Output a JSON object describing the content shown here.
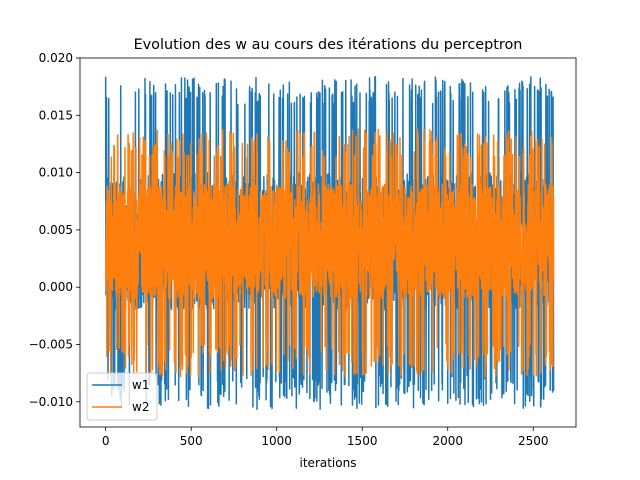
{
  "chart_data": {
    "type": "line",
    "title": "Evolution des w au cours des itérations du perceptron",
    "xlabel": "iterations",
    "ylabel": "",
    "xlim": [
      -150,
      2750
    ],
    "ylim": [
      -0.0122,
      0.02
    ],
    "x_ticks": [
      0,
      500,
      1000,
      1500,
      2000,
      2500
    ],
    "x_tick_labels": [
      "0",
      "500",
      "1000",
      "1500",
      "2000",
      "2500"
    ],
    "y_ticks": [
      -0.01,
      -0.005,
      0.0,
      0.005,
      0.01,
      0.015,
      0.02
    ],
    "y_tick_labels": [
      "−0.010",
      "−0.005",
      "0.000",
      "0.005",
      "0.010",
      "0.015",
      "0.020"
    ],
    "grid": false,
    "legend_position": "lower left",
    "n_points": 2620,
    "series": [
      {
        "name": "w1",
        "color": "#1f77b4",
        "min": -0.0107,
        "max": 0.0184,
        "center": 0.004,
        "spread": 0.006
      },
      {
        "name": "w2",
        "color": "#ff7f0e",
        "min": -0.0079,
        "max": 0.0138,
        "center": 0.004,
        "spread": 0.005
      }
    ]
  }
}
